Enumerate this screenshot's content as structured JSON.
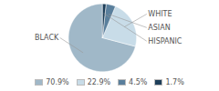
{
  "chart_data": {
    "type": "pie",
    "categories": [
      "BLACK",
      "WHITE",
      "ASIAN",
      "HISPANIC"
    ],
    "values": [
      70.9,
      22.9,
      4.5,
      1.7
    ],
    "value_labels": [
      "70.9%",
      "22.9%",
      "4.5%",
      "1.7%"
    ],
    "colors": [
      "#a0b8c8",
      "#c8dce8",
      "#5a7f9c",
      "#1e3f5a"
    ],
    "legend": "bottom"
  }
}
